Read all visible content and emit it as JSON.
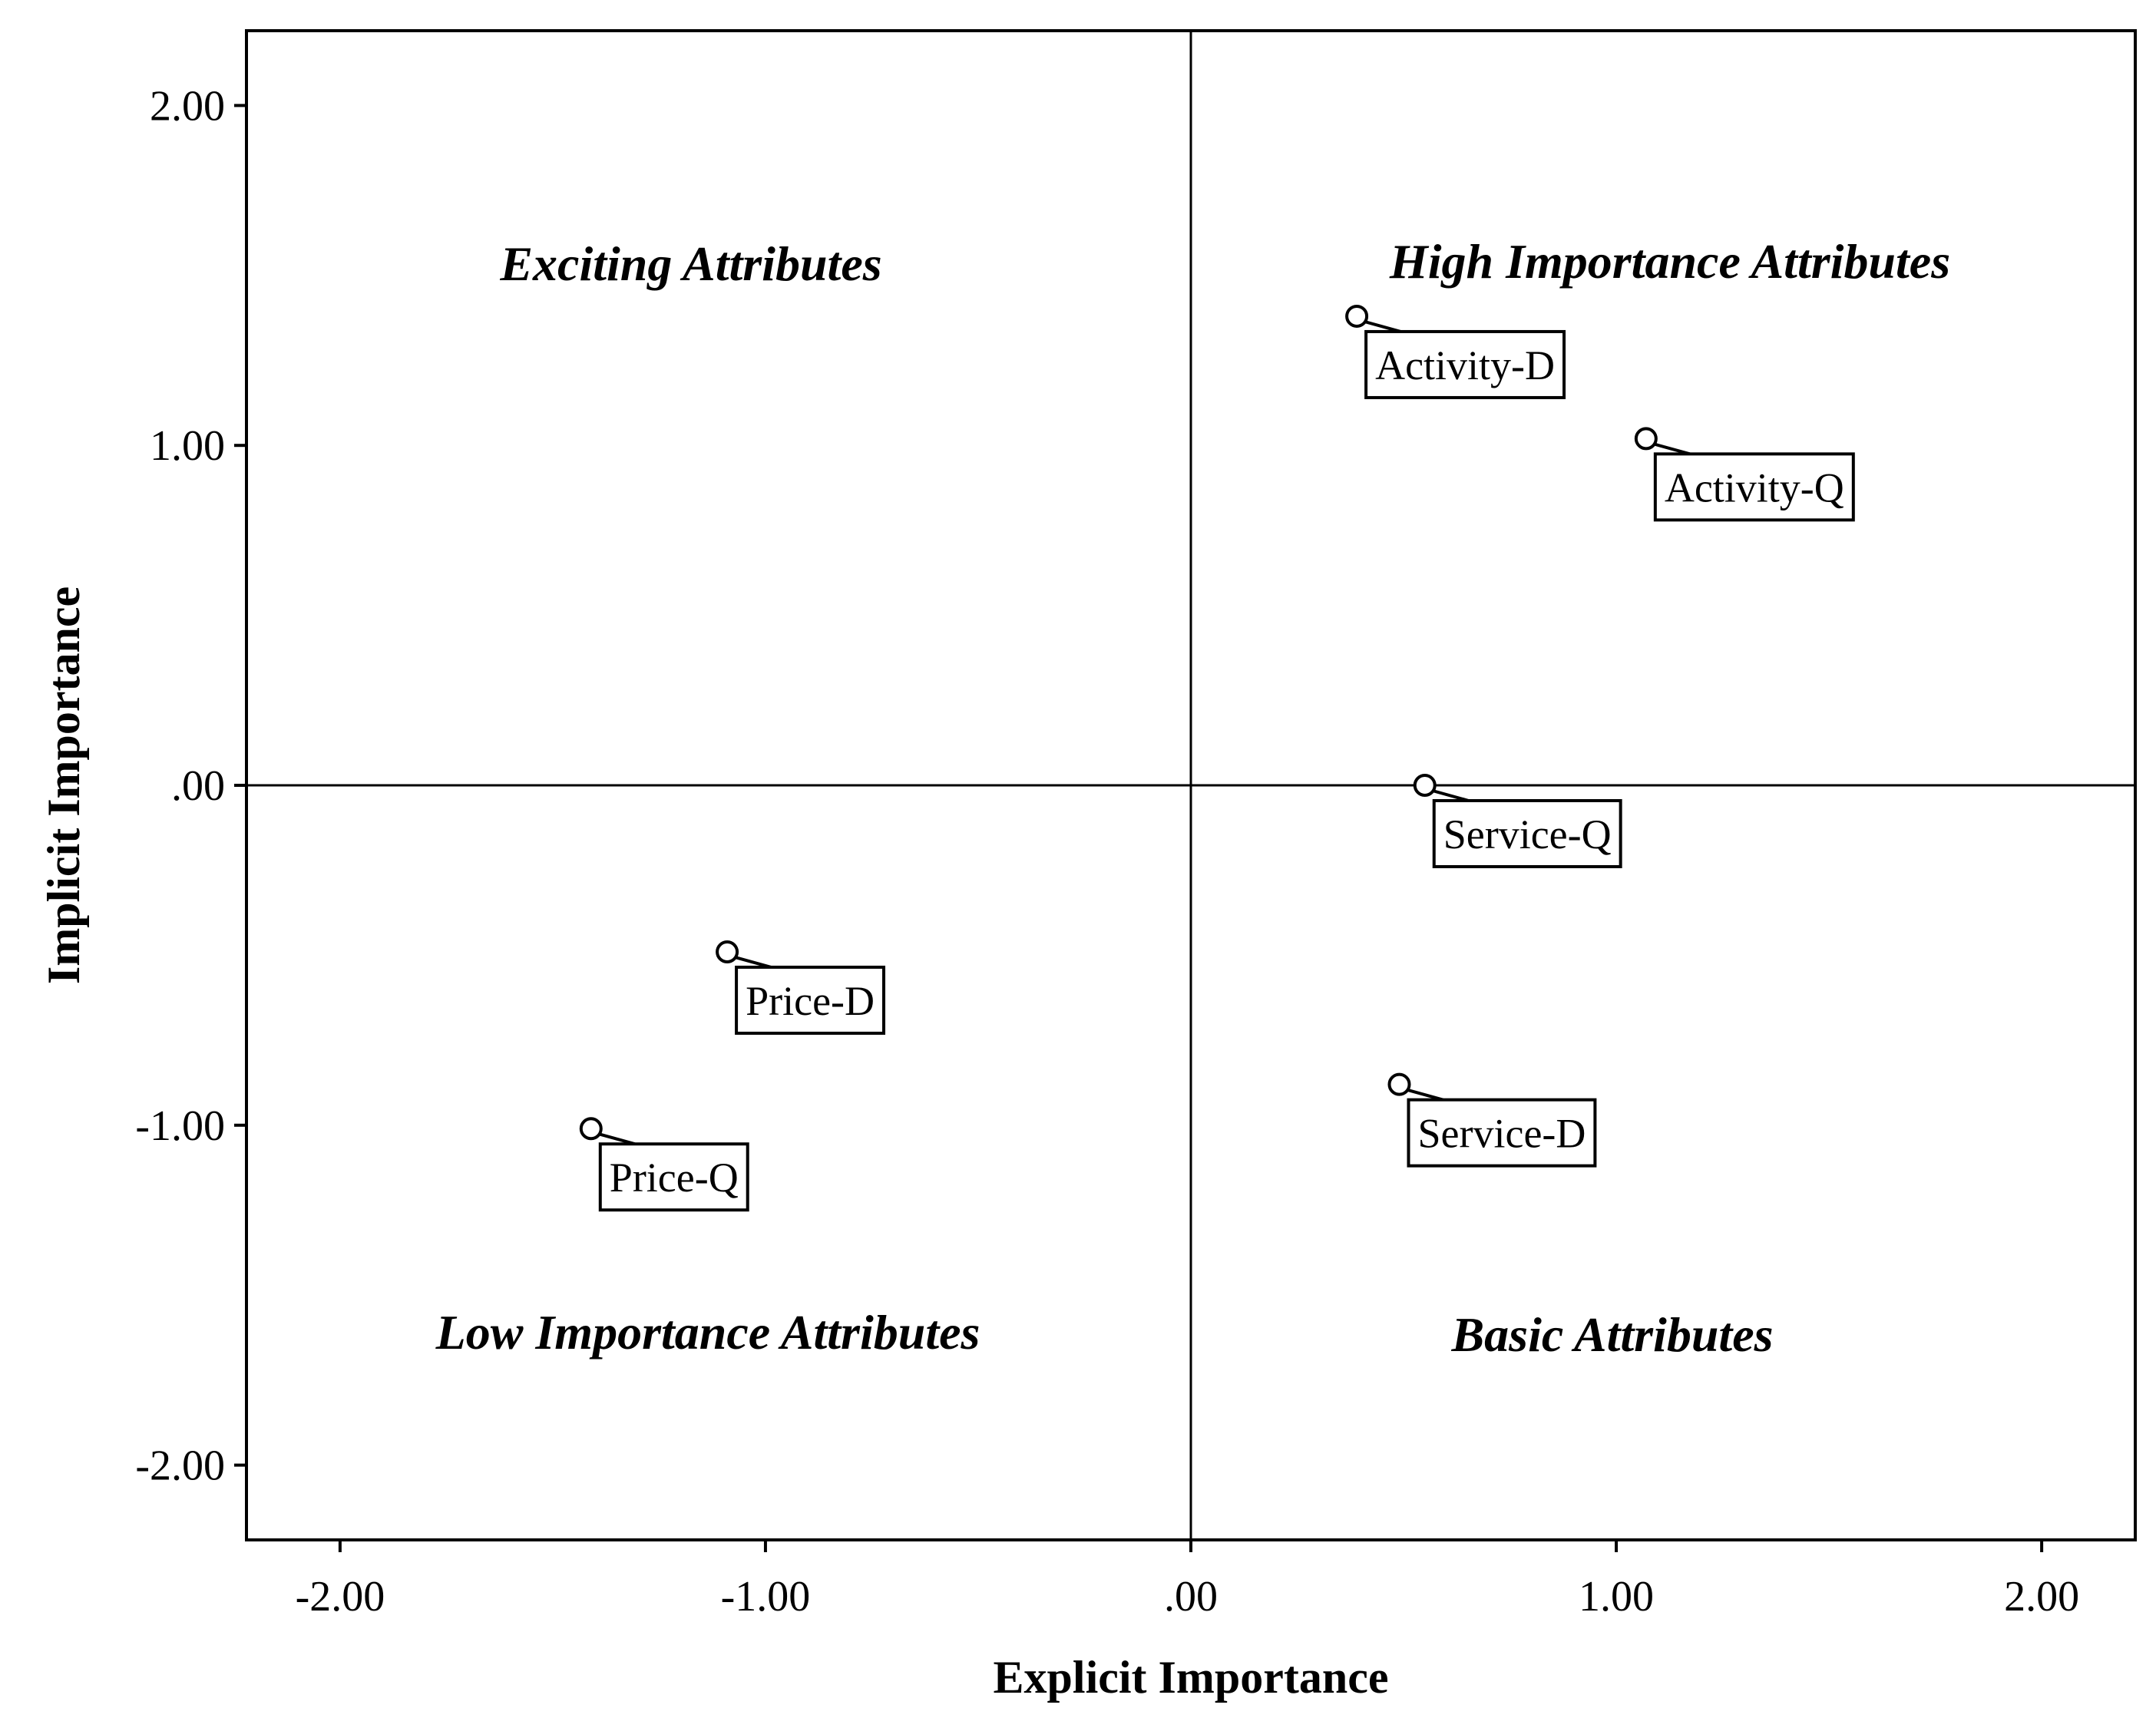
{
  "chart_data": {
    "type": "scatter",
    "title": "",
    "xlabel": "Explicit Importance",
    "ylabel": "Implicit Importance",
    "xlim": [
      -2.22,
      2.22
    ],
    "ylim": [
      -2.22,
      2.22
    ],
    "x_ticks": [
      -2,
      -1,
      0,
      1,
      2
    ],
    "y_ticks": [
      -2,
      -1,
      0,
      1,
      2
    ],
    "x_tick_labels": [
      "-2.00",
      "-1.00",
      ".00",
      "1.00",
      "2.00"
    ],
    "y_tick_labels": [
      "-2.00",
      "-1.00",
      ".00",
      "1.00",
      "2.00"
    ],
    "grid": false,
    "reference_lines": {
      "x": 0,
      "y": 0
    },
    "quadrant_labels": [
      {
        "text": "Exciting Attributes",
        "quadrant": "top-left"
      },
      {
        "text": "High Importance Attributes",
        "quadrant": "top-right"
      },
      {
        "text": "Low Importance Attributes",
        "quadrant": "bottom-left"
      },
      {
        "text": "Basic Attributes",
        "quadrant": "bottom-right"
      }
    ],
    "points": [
      {
        "label": "Activity-D",
        "x": 0.39,
        "y": 1.38
      },
      {
        "label": "Activity-Q",
        "x": 1.07,
        "y": 1.02
      },
      {
        "label": "Service-Q",
        "x": 0.55,
        "y": 0.0
      },
      {
        "label": "Price-D",
        "x": -1.09,
        "y": -0.49
      },
      {
        "label": "Price-Q",
        "x": -1.41,
        "y": -1.01
      },
      {
        "label": "Service-D",
        "x": 0.49,
        "y": -0.88
      }
    ]
  }
}
